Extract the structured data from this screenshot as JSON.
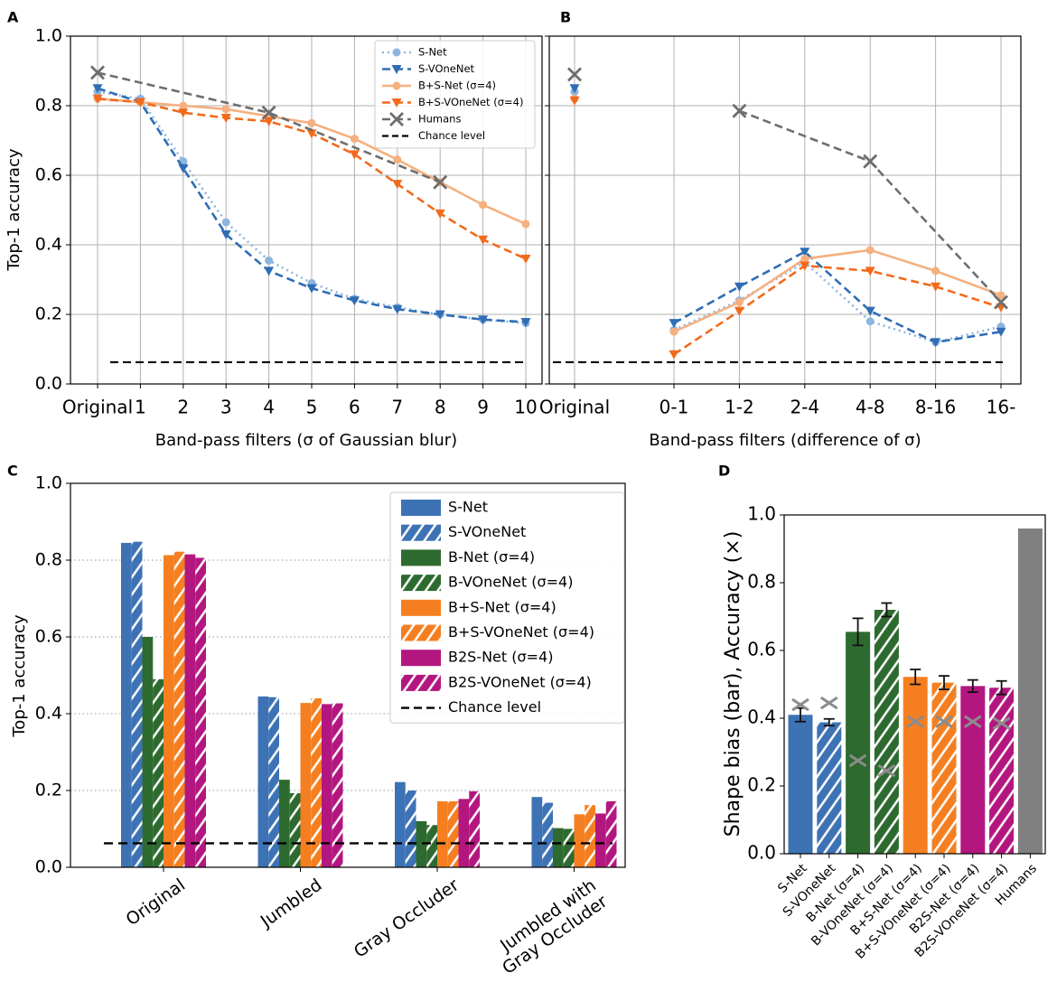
{
  "chart_data": [
    {
      "type": "line",
      "panel": "A",
      "xlabel": "Band-pass filters (σ of Gaussian blur)",
      "ylabel": "Top-1 accuracy",
      "categories": [
        "Original",
        "1",
        "2",
        "3",
        "4",
        "5",
        "6",
        "7",
        "8",
        "9",
        "10"
      ],
      "series": [
        {
          "name": "S-Net",
          "color": "#8fb4de",
          "linestyle": "dotted",
          "marker": "circle",
          "values": [
            0.84,
            0.82,
            0.64,
            0.465,
            0.355,
            0.29,
            0.245,
            0.22,
            0.2,
            0.185,
            0.175
          ]
        },
        {
          "name": "S-VOneNet",
          "color": "#2f6db5",
          "linestyle": "dashed",
          "marker": "triangle-down",
          "values": [
            0.85,
            0.81,
            0.62,
            0.43,
            0.325,
            0.275,
            0.24,
            0.215,
            0.2,
            0.185,
            0.178
          ]
        },
        {
          "name": "B+S-Net (σ=4)",
          "color": "#f5b07f",
          "linestyle": "solid",
          "marker": "circle",
          "values": [
            0.82,
            0.81,
            0.8,
            0.79,
            0.77,
            0.75,
            0.705,
            0.645,
            0.58,
            0.515,
            0.46
          ]
        },
        {
          "name": "B+S-VOneNet (σ=4)",
          "color": "#f26a1b",
          "linestyle": "dashed",
          "marker": "triangle-down",
          "values": [
            0.82,
            0.81,
            0.78,
            0.765,
            0.755,
            0.72,
            0.66,
            0.575,
            0.49,
            0.415,
            0.36
          ]
        },
        {
          "name": "Humans",
          "color": "#6e6e6e",
          "linestyle": "dashed",
          "marker": "x",
          "x": [
            "Original",
            "4",
            "8"
          ],
          "values": [
            0.895,
            0.78,
            0.58
          ]
        }
      ],
      "hline": {
        "name": "Chance level",
        "value": 0.0625,
        "color": "#000000"
      },
      "connect_original": true,
      "ylim": [
        0,
        1
      ],
      "yticks": [
        {
          "value": 0,
          "label": "0.0"
        },
        0.2,
        0.4,
        0.6,
        0.8,
        {
          "value": 1,
          "label": "1.0"
        }
      ],
      "grid": true,
      "legend": "upper right"
    },
    {
      "type": "line",
      "panel": "B",
      "xlabel": "Band-pass filters (difference of σ)",
      "categories": [
        "Original",
        "0-1",
        "1-2",
        "2-4",
        "4-8",
        "8-16",
        "16-"
      ],
      "series": [
        {
          "name": "S-Net",
          "color": "#8fb4de",
          "linestyle": "dotted",
          "marker": "circle",
          "values": [
            0.84,
            0.155,
            0.24,
            0.35,
            0.18,
            0.12,
            0.165
          ]
        },
        {
          "name": "S-VOneNet",
          "color": "#2f6db5",
          "linestyle": "dashed",
          "marker": "triangle-down",
          "values": [
            0.85,
            0.175,
            0.28,
            0.38,
            0.21,
            0.12,
            0.15
          ]
        },
        {
          "name": "B+S-Net (σ=4)",
          "color": "#f5b07f",
          "linestyle": "solid",
          "marker": "circle",
          "values": [
            0.82,
            0.15,
            0.235,
            0.36,
            0.385,
            0.325,
            0.255
          ]
        },
        {
          "name": "B+S-VOneNet (σ=4)",
          "color": "#f26a1b",
          "linestyle": "dashed",
          "marker": "triangle-down",
          "values": [
            0.815,
            0.085,
            0.21,
            0.34,
            0.325,
            0.28,
            0.22
          ]
        },
        {
          "name": "Humans",
          "color": "#6e6e6e",
          "linestyle": "dashed",
          "marker": "x",
          "x": [
            "Original",
            "1-2",
            "4-8",
            "16-"
          ],
          "values": [
            0.89,
            0.785,
            0.64,
            0.235
          ]
        }
      ],
      "hline": {
        "name": "Chance level",
        "value": 0.0625,
        "color": "#000000"
      },
      "connect_original": false,
      "ylim": [
        0,
        1
      ],
      "yticks": [
        0,
        0.2,
        0.4,
        0.6,
        0.8,
        1
      ],
      "show_ytick_labels": false,
      "grid": true
    },
    {
      "type": "grouped-bar",
      "panel": "C",
      "ylabel": "Top-1 accuracy",
      "categories": [
        "Original",
        "Jumbled",
        "Gray Occluder",
        "Jumbled with\nGray Occluder"
      ],
      "series": [
        {
          "name": "S-Net",
          "color": "#3d72b4",
          "hatch": false,
          "values": [
            0.845,
            0.445,
            0.222,
            0.183
          ]
        },
        {
          "name": "S-VOneNet",
          "color": "#3d72b4",
          "hatch": true,
          "values": [
            0.848,
            0.443,
            0.2,
            0.168
          ]
        },
        {
          "name": "B-Net (σ=4)",
          "color": "#2d6a2f",
          "hatch": false,
          "values": [
            0.6,
            0.228,
            0.12,
            0.102
          ]
        },
        {
          "name": "B-VOneNet (σ=4)",
          "color": "#2d6a2f",
          "hatch": true,
          "values": [
            0.49,
            0.193,
            0.11,
            0.1
          ]
        },
        {
          "name": "B+S-Net (σ=4)",
          "color": "#f57f20",
          "hatch": false,
          "values": [
            0.813,
            0.428,
            0.172,
            0.138
          ]
        },
        {
          "name": "B+S-VOneNet (σ=4)",
          "color": "#f57f20",
          "hatch": true,
          "values": [
            0.822,
            0.44,
            0.172,
            0.162
          ]
        },
        {
          "name": "B2S-Net (σ=4)",
          "color": "#b3177f",
          "hatch": false,
          "values": [
            0.815,
            0.425,
            0.178,
            0.14
          ]
        },
        {
          "name": "B2S-VOneNet (σ=4)",
          "color": "#b3177f",
          "hatch": true,
          "values": [
            0.806,
            0.427,
            0.198,
            0.172
          ]
        }
      ],
      "hline": {
        "name": "Chance level",
        "value": 0.0625,
        "color": "#000000"
      },
      "ylim": [
        0,
        1
      ],
      "yticks": [
        {
          "value": 0,
          "label": "0.0"
        },
        0.2,
        0.4,
        0.6,
        0.8,
        {
          "value": 1,
          "label": "1.0"
        }
      ],
      "grid": "y",
      "legend": "upper right"
    },
    {
      "type": "bar",
      "panel": "D",
      "ylabel": "Shape bias (bar), Accuracy (×)",
      "categories": [
        "S-Net",
        "S-VOneNet",
        "B-Net (σ=4)",
        "B-VOneNet (σ=4)",
        "B+S-Net (σ=4)",
        "B+S-VOneNet (σ=4)",
        "B2S-Net (σ=4)",
        "B2S-VOneNet (σ=4)",
        "Humans"
      ],
      "values": [
        0.41,
        0.388,
        0.655,
        0.72,
        0.522,
        0.505,
        0.495,
        0.49,
        0.96
      ],
      "errors": [
        0.02,
        0.01,
        0.04,
        0.02,
        0.022,
        0.02,
        0.018,
        0.02,
        null
      ],
      "accuracy": [
        0.44,
        0.445,
        0.275,
        0.245,
        0.39,
        0.39,
        0.39,
        0.385,
        null
      ],
      "accuracy_color": "#8c8c8c",
      "colors": [
        "#3d72b4",
        "#3d72b4",
        "#2d6a2f",
        "#2d6a2f",
        "#f57f20",
        "#f57f20",
        "#b3177f",
        "#b3177f",
        "#808080"
      ],
      "hatched": [
        false,
        true,
        false,
        true,
        false,
        true,
        false,
        true,
        false
      ],
      "ylim": [
        0,
        1
      ],
      "yticks": [
        {
          "value": 0,
          "label": "0.0"
        },
        0.2,
        0.4,
        0.6,
        0.8,
        {
          "value": 1,
          "label": "1.0"
        }
      ],
      "grid": false
    }
  ]
}
